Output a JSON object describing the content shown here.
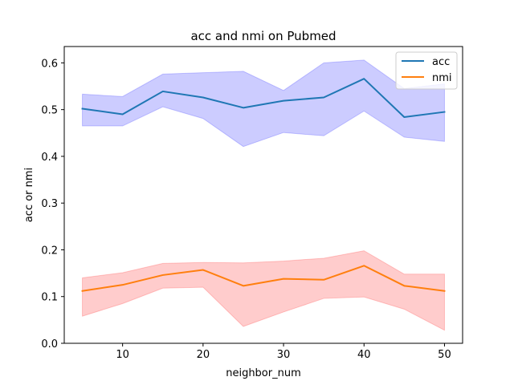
{
  "chart_data": {
    "type": "line",
    "title": "acc and nmi on Pubmed",
    "xlabel": "neighbor_num",
    "ylabel": "acc or nmi",
    "x": [
      5,
      10,
      15,
      20,
      25,
      30,
      35,
      40,
      45,
      50
    ],
    "xlim": [
      2.75,
      52.25
    ],
    "ylim": [
      0.0,
      0.635
    ],
    "xticks": [
      10,
      20,
      30,
      40,
      50
    ],
    "yticks": [
      0.0,
      0.1,
      0.2,
      0.3,
      0.4,
      0.5,
      0.6
    ],
    "xtick_labels": [
      "10",
      "20",
      "30",
      "40",
      "50"
    ],
    "ytick_labels": [
      "0.0",
      "0.1",
      "0.2",
      "0.3",
      "0.4",
      "0.5",
      "0.6"
    ],
    "grid": false,
    "legend_position": "top-right",
    "series": [
      {
        "name": "acc",
        "color": "#1f77b4",
        "band_color": "#0000ff",
        "values": [
          0.502,
          0.49,
          0.539,
          0.526,
          0.504,
          0.519,
          0.526,
          0.566,
          0.484,
          0.495
        ],
        "lower": [
          0.465,
          0.465,
          0.506,
          0.481,
          0.421,
          0.451,
          0.444,
          0.497,
          0.441,
          0.432
        ],
        "upper": [
          0.533,
          0.528,
          0.576,
          0.579,
          0.582,
          0.541,
          0.6,
          0.606,
          0.545,
          0.555
        ]
      },
      {
        "name": "nmi",
        "color": "#ff7f0e",
        "band_color": "#ff0000",
        "values": [
          0.112,
          0.125,
          0.146,
          0.157,
          0.123,
          0.138,
          0.136,
          0.166,
          0.123,
          0.112
        ],
        "lower": [
          0.058,
          0.085,
          0.118,
          0.12,
          0.036,
          0.067,
          0.096,
          0.099,
          0.073,
          0.028
        ],
        "upper": [
          0.14,
          0.151,
          0.171,
          0.173,
          0.172,
          0.176,
          0.182,
          0.198,
          0.148,
          0.148
        ]
      }
    ]
  }
}
